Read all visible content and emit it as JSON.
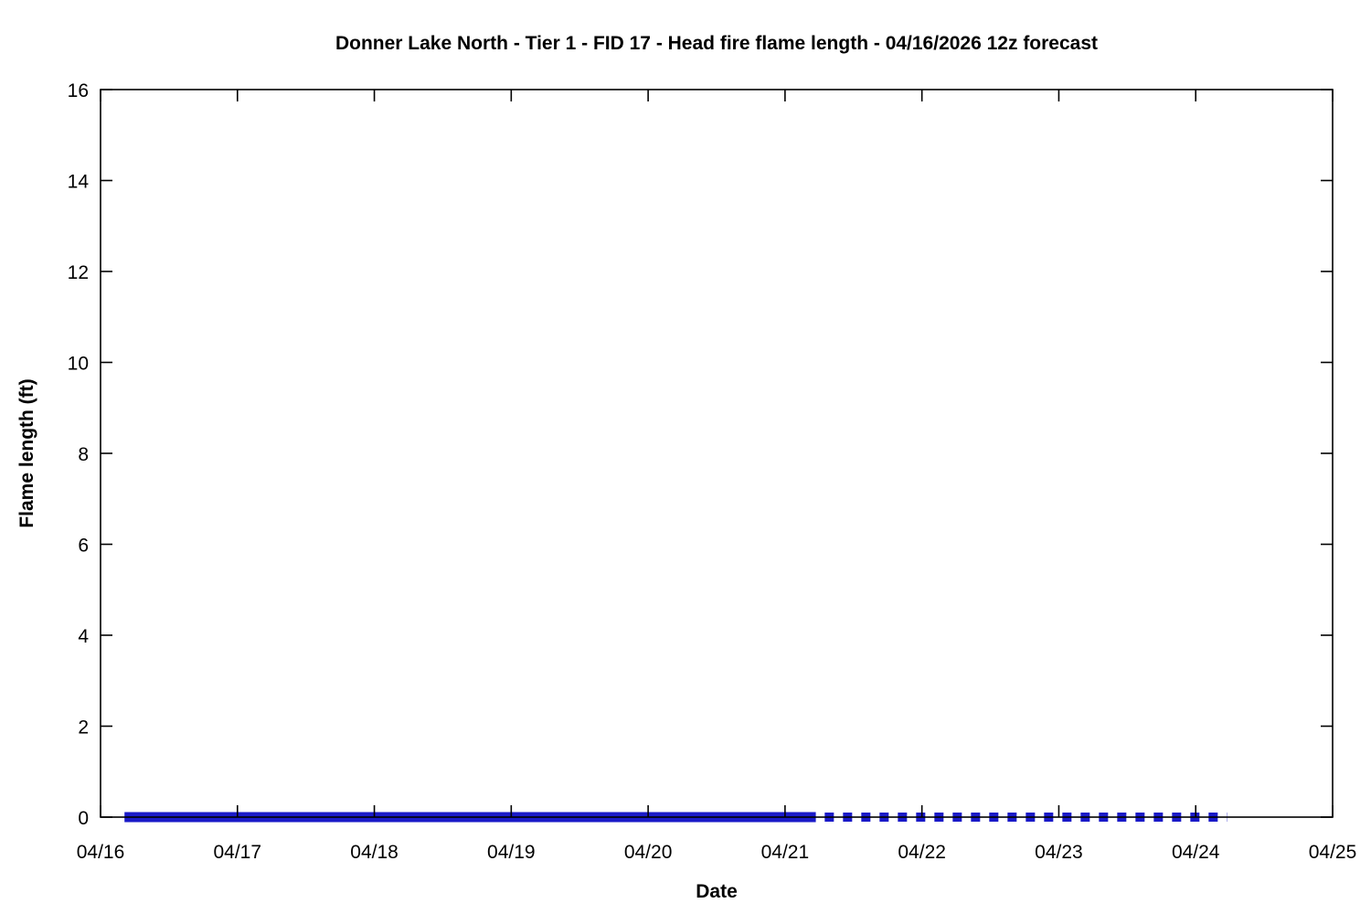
{
  "chart_data": {
    "type": "line",
    "title": "Donner Lake North - Tier 1 - FID 17 - Head fire flame length - 04/16/2026 12z forecast",
    "xlabel": "Date",
    "ylabel": "Flame length (ft)",
    "x_tick_labels": [
      "04/16",
      "04/17",
      "04/18",
      "04/19",
      "04/20",
      "04/21",
      "04/22",
      "04/23",
      "04/24",
      "04/25"
    ],
    "x_range_days": [
      0,
      9
    ],
    "y_ticks": [
      0,
      2,
      4,
      6,
      8,
      10,
      12,
      14,
      16
    ],
    "ylim": [
      0,
      16
    ],
    "grid": false,
    "legend": "none",
    "axis_color": "#000000",
    "line_color": "#1a1ac8",
    "series": [
      {
        "name": "head-fire-flame-length-forecast-solid",
        "style": "solid",
        "color": "#1a1ac8",
        "x_days": [
          0.175,
          5.225
        ],
        "values": [
          0,
          0
        ]
      },
      {
        "name": "head-fire-flame-length-forecast-dashed",
        "style": "dashed",
        "color": "#1a1ac8",
        "x_days": [
          5.29,
          8.23
        ],
        "values": [
          0,
          0
        ]
      }
    ]
  }
}
